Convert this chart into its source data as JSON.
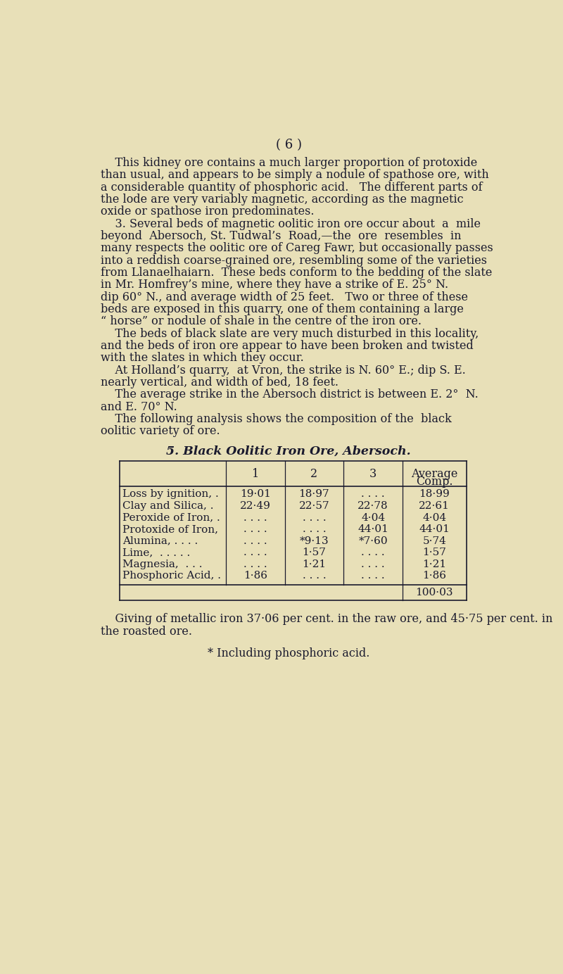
{
  "bg_color": "#E8E0B8",
  "text_color": "#1A1A2E",
  "page_number": "( 6 )",
  "body_lines": [
    "    This kidney ore contains a much larger proportion of protoxide",
    "than usual, and appears to be simply a nodule of spathose ore, with",
    "a considerable quantity of phosphoric acid.   The different parts of",
    "the lode are very variably magnetic, according as the magnetic",
    "oxide or spathose iron predominates.",
    "    3. Several beds of magnetic oolitic iron ore occur about  a  mile",
    "beyond  Abersoch, St. Tudwal’s  Road,—the  ore  resembles  in",
    "many respects the oolitic ore of Careg Fawr, but occasionally passes",
    "into a reddish coarse-grained ore, resembling some of the varieties",
    "from Llanaelhaiarn.  These beds conform to the bedding of the slate",
    "in Mr. Homfrey’s mine, where they have a strike of E. 25° N.",
    "dip 60° N., and average width of 25 feet.   Two or three of these",
    "beds are exposed in this quarry, one of them containing a large",
    "“ horse” or nodule of shale in the centre of the iron ore.",
    "    The beds of black slate are very much disturbed in this locality,",
    "and the beds of iron ore appear to have been broken and twisted",
    "with the slates in which they occur.",
    "    At Holland’s quarry,  at Vron, the strike is N. 60° E.; dip S. E.",
    "nearly vertical, and width of bed, 18 feet.",
    "    The average strike in the Abersoch district is between E. 2°  N.",
    "and E. 70° N.",
    "    The following analysis shows the composition of the  black",
    "oolitic variety of ore."
  ],
  "table_title": "5. Black Oolitic Iron Ore, Abersoch.",
  "col_headers_1": [
    "",
    "1",
    "2",
    "3",
    "Average"
  ],
  "col_headers_2": [
    "",
    "",
    "",
    "",
    "Comp."
  ],
  "table_rows": [
    [
      "Loss by ignition, .",
      "19·01",
      "18·97",
      ". . . .",
      "18·99"
    ],
    [
      "Clay and Silica, .",
      "22·49",
      "22·57",
      "22·78",
      "22·61"
    ],
    [
      "Peroxide of Iron, .",
      ". . . .",
      ". . . .",
      "4·04",
      "4·04"
    ],
    [
      "Protoxide of Iron,",
      ". . . .",
      ". . . .",
      "44·01",
      "44·01"
    ],
    [
      "Alumina, . . . .",
      ". . . .",
      "*9·13",
      "*7·60",
      "5·74"
    ],
    [
      "Lime,  . . . . .",
      ". . . .",
      "1·57",
      ". . . .",
      "1·57"
    ],
    [
      "Magnesia,  . . .",
      ". . . .",
      "1·21",
      ". . . .",
      "1·21"
    ],
    [
      "Phosphoric Acid, .",
      "1·86",
      ". . . .",
      ". . . .",
      "1·86"
    ]
  ],
  "table_total": "100·03",
  "footer_lines": [
    "    Giving of metallic iron 37·06 per cent. in the raw ore, and 45·75 per cent. in",
    "the roasted ore."
  ],
  "footnote": "* Including phosphoric acid."
}
